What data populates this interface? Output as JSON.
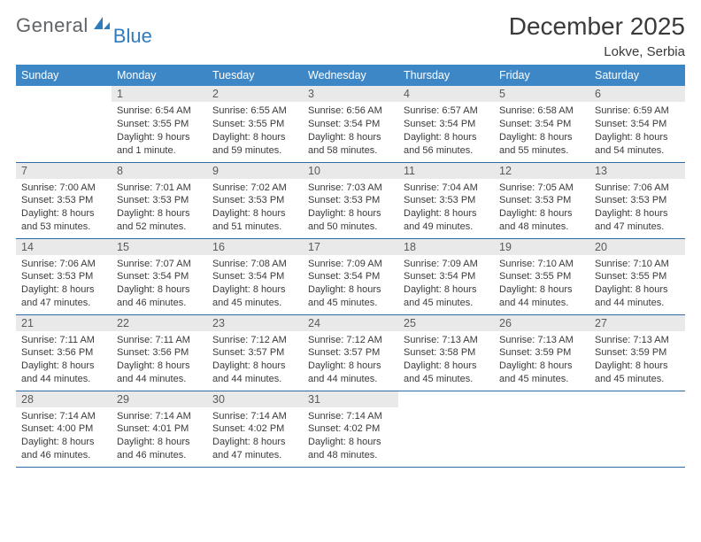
{
  "brand": {
    "word1": "General",
    "word2": "Blue",
    "icon_color": "#2f7bbf"
  },
  "title": "December 2025",
  "location": "Lokve, Serbia",
  "colors": {
    "header_bg": "#3d87c7",
    "header_fg": "#ffffff",
    "daynum_bg": "#e9e9e9",
    "row_border": "#2f6aa0",
    "text": "#3a3a3a"
  },
  "weekdays": [
    "Sunday",
    "Monday",
    "Tuesday",
    "Wednesday",
    "Thursday",
    "Friday",
    "Saturday"
  ],
  "weeks": [
    [
      {
        "n": "",
        "sr": "",
        "ss": "",
        "dl": ""
      },
      {
        "n": "1",
        "sr": "Sunrise: 6:54 AM",
        "ss": "Sunset: 3:55 PM",
        "dl": "Daylight: 9 hours and 1 minute."
      },
      {
        "n": "2",
        "sr": "Sunrise: 6:55 AM",
        "ss": "Sunset: 3:55 PM",
        "dl": "Daylight: 8 hours and 59 minutes."
      },
      {
        "n": "3",
        "sr": "Sunrise: 6:56 AM",
        "ss": "Sunset: 3:54 PM",
        "dl": "Daylight: 8 hours and 58 minutes."
      },
      {
        "n": "4",
        "sr": "Sunrise: 6:57 AM",
        "ss": "Sunset: 3:54 PM",
        "dl": "Daylight: 8 hours and 56 minutes."
      },
      {
        "n": "5",
        "sr": "Sunrise: 6:58 AM",
        "ss": "Sunset: 3:54 PM",
        "dl": "Daylight: 8 hours and 55 minutes."
      },
      {
        "n": "6",
        "sr": "Sunrise: 6:59 AM",
        "ss": "Sunset: 3:54 PM",
        "dl": "Daylight: 8 hours and 54 minutes."
      }
    ],
    [
      {
        "n": "7",
        "sr": "Sunrise: 7:00 AM",
        "ss": "Sunset: 3:53 PM",
        "dl": "Daylight: 8 hours and 53 minutes."
      },
      {
        "n": "8",
        "sr": "Sunrise: 7:01 AM",
        "ss": "Sunset: 3:53 PM",
        "dl": "Daylight: 8 hours and 52 minutes."
      },
      {
        "n": "9",
        "sr": "Sunrise: 7:02 AM",
        "ss": "Sunset: 3:53 PM",
        "dl": "Daylight: 8 hours and 51 minutes."
      },
      {
        "n": "10",
        "sr": "Sunrise: 7:03 AM",
        "ss": "Sunset: 3:53 PM",
        "dl": "Daylight: 8 hours and 50 minutes."
      },
      {
        "n": "11",
        "sr": "Sunrise: 7:04 AM",
        "ss": "Sunset: 3:53 PM",
        "dl": "Daylight: 8 hours and 49 minutes."
      },
      {
        "n": "12",
        "sr": "Sunrise: 7:05 AM",
        "ss": "Sunset: 3:53 PM",
        "dl": "Daylight: 8 hours and 48 minutes."
      },
      {
        "n": "13",
        "sr": "Sunrise: 7:06 AM",
        "ss": "Sunset: 3:53 PM",
        "dl": "Daylight: 8 hours and 47 minutes."
      }
    ],
    [
      {
        "n": "14",
        "sr": "Sunrise: 7:06 AM",
        "ss": "Sunset: 3:53 PM",
        "dl": "Daylight: 8 hours and 47 minutes."
      },
      {
        "n": "15",
        "sr": "Sunrise: 7:07 AM",
        "ss": "Sunset: 3:54 PM",
        "dl": "Daylight: 8 hours and 46 minutes."
      },
      {
        "n": "16",
        "sr": "Sunrise: 7:08 AM",
        "ss": "Sunset: 3:54 PM",
        "dl": "Daylight: 8 hours and 45 minutes."
      },
      {
        "n": "17",
        "sr": "Sunrise: 7:09 AM",
        "ss": "Sunset: 3:54 PM",
        "dl": "Daylight: 8 hours and 45 minutes."
      },
      {
        "n": "18",
        "sr": "Sunrise: 7:09 AM",
        "ss": "Sunset: 3:54 PM",
        "dl": "Daylight: 8 hours and 45 minutes."
      },
      {
        "n": "19",
        "sr": "Sunrise: 7:10 AM",
        "ss": "Sunset: 3:55 PM",
        "dl": "Daylight: 8 hours and 44 minutes."
      },
      {
        "n": "20",
        "sr": "Sunrise: 7:10 AM",
        "ss": "Sunset: 3:55 PM",
        "dl": "Daylight: 8 hours and 44 minutes."
      }
    ],
    [
      {
        "n": "21",
        "sr": "Sunrise: 7:11 AM",
        "ss": "Sunset: 3:56 PM",
        "dl": "Daylight: 8 hours and 44 minutes."
      },
      {
        "n": "22",
        "sr": "Sunrise: 7:11 AM",
        "ss": "Sunset: 3:56 PM",
        "dl": "Daylight: 8 hours and 44 minutes."
      },
      {
        "n": "23",
        "sr": "Sunrise: 7:12 AM",
        "ss": "Sunset: 3:57 PM",
        "dl": "Daylight: 8 hours and 44 minutes."
      },
      {
        "n": "24",
        "sr": "Sunrise: 7:12 AM",
        "ss": "Sunset: 3:57 PM",
        "dl": "Daylight: 8 hours and 44 minutes."
      },
      {
        "n": "25",
        "sr": "Sunrise: 7:13 AM",
        "ss": "Sunset: 3:58 PM",
        "dl": "Daylight: 8 hours and 45 minutes."
      },
      {
        "n": "26",
        "sr": "Sunrise: 7:13 AM",
        "ss": "Sunset: 3:59 PM",
        "dl": "Daylight: 8 hours and 45 minutes."
      },
      {
        "n": "27",
        "sr": "Sunrise: 7:13 AM",
        "ss": "Sunset: 3:59 PM",
        "dl": "Daylight: 8 hours and 45 minutes."
      }
    ],
    [
      {
        "n": "28",
        "sr": "Sunrise: 7:14 AM",
        "ss": "Sunset: 4:00 PM",
        "dl": "Daylight: 8 hours and 46 minutes."
      },
      {
        "n": "29",
        "sr": "Sunrise: 7:14 AM",
        "ss": "Sunset: 4:01 PM",
        "dl": "Daylight: 8 hours and 46 minutes."
      },
      {
        "n": "30",
        "sr": "Sunrise: 7:14 AM",
        "ss": "Sunset: 4:02 PM",
        "dl": "Daylight: 8 hours and 47 minutes."
      },
      {
        "n": "31",
        "sr": "Sunrise: 7:14 AM",
        "ss": "Sunset: 4:02 PM",
        "dl": "Daylight: 8 hours and 48 minutes."
      },
      {
        "n": "",
        "sr": "",
        "ss": "",
        "dl": ""
      },
      {
        "n": "",
        "sr": "",
        "ss": "",
        "dl": ""
      },
      {
        "n": "",
        "sr": "",
        "ss": "",
        "dl": ""
      }
    ]
  ]
}
